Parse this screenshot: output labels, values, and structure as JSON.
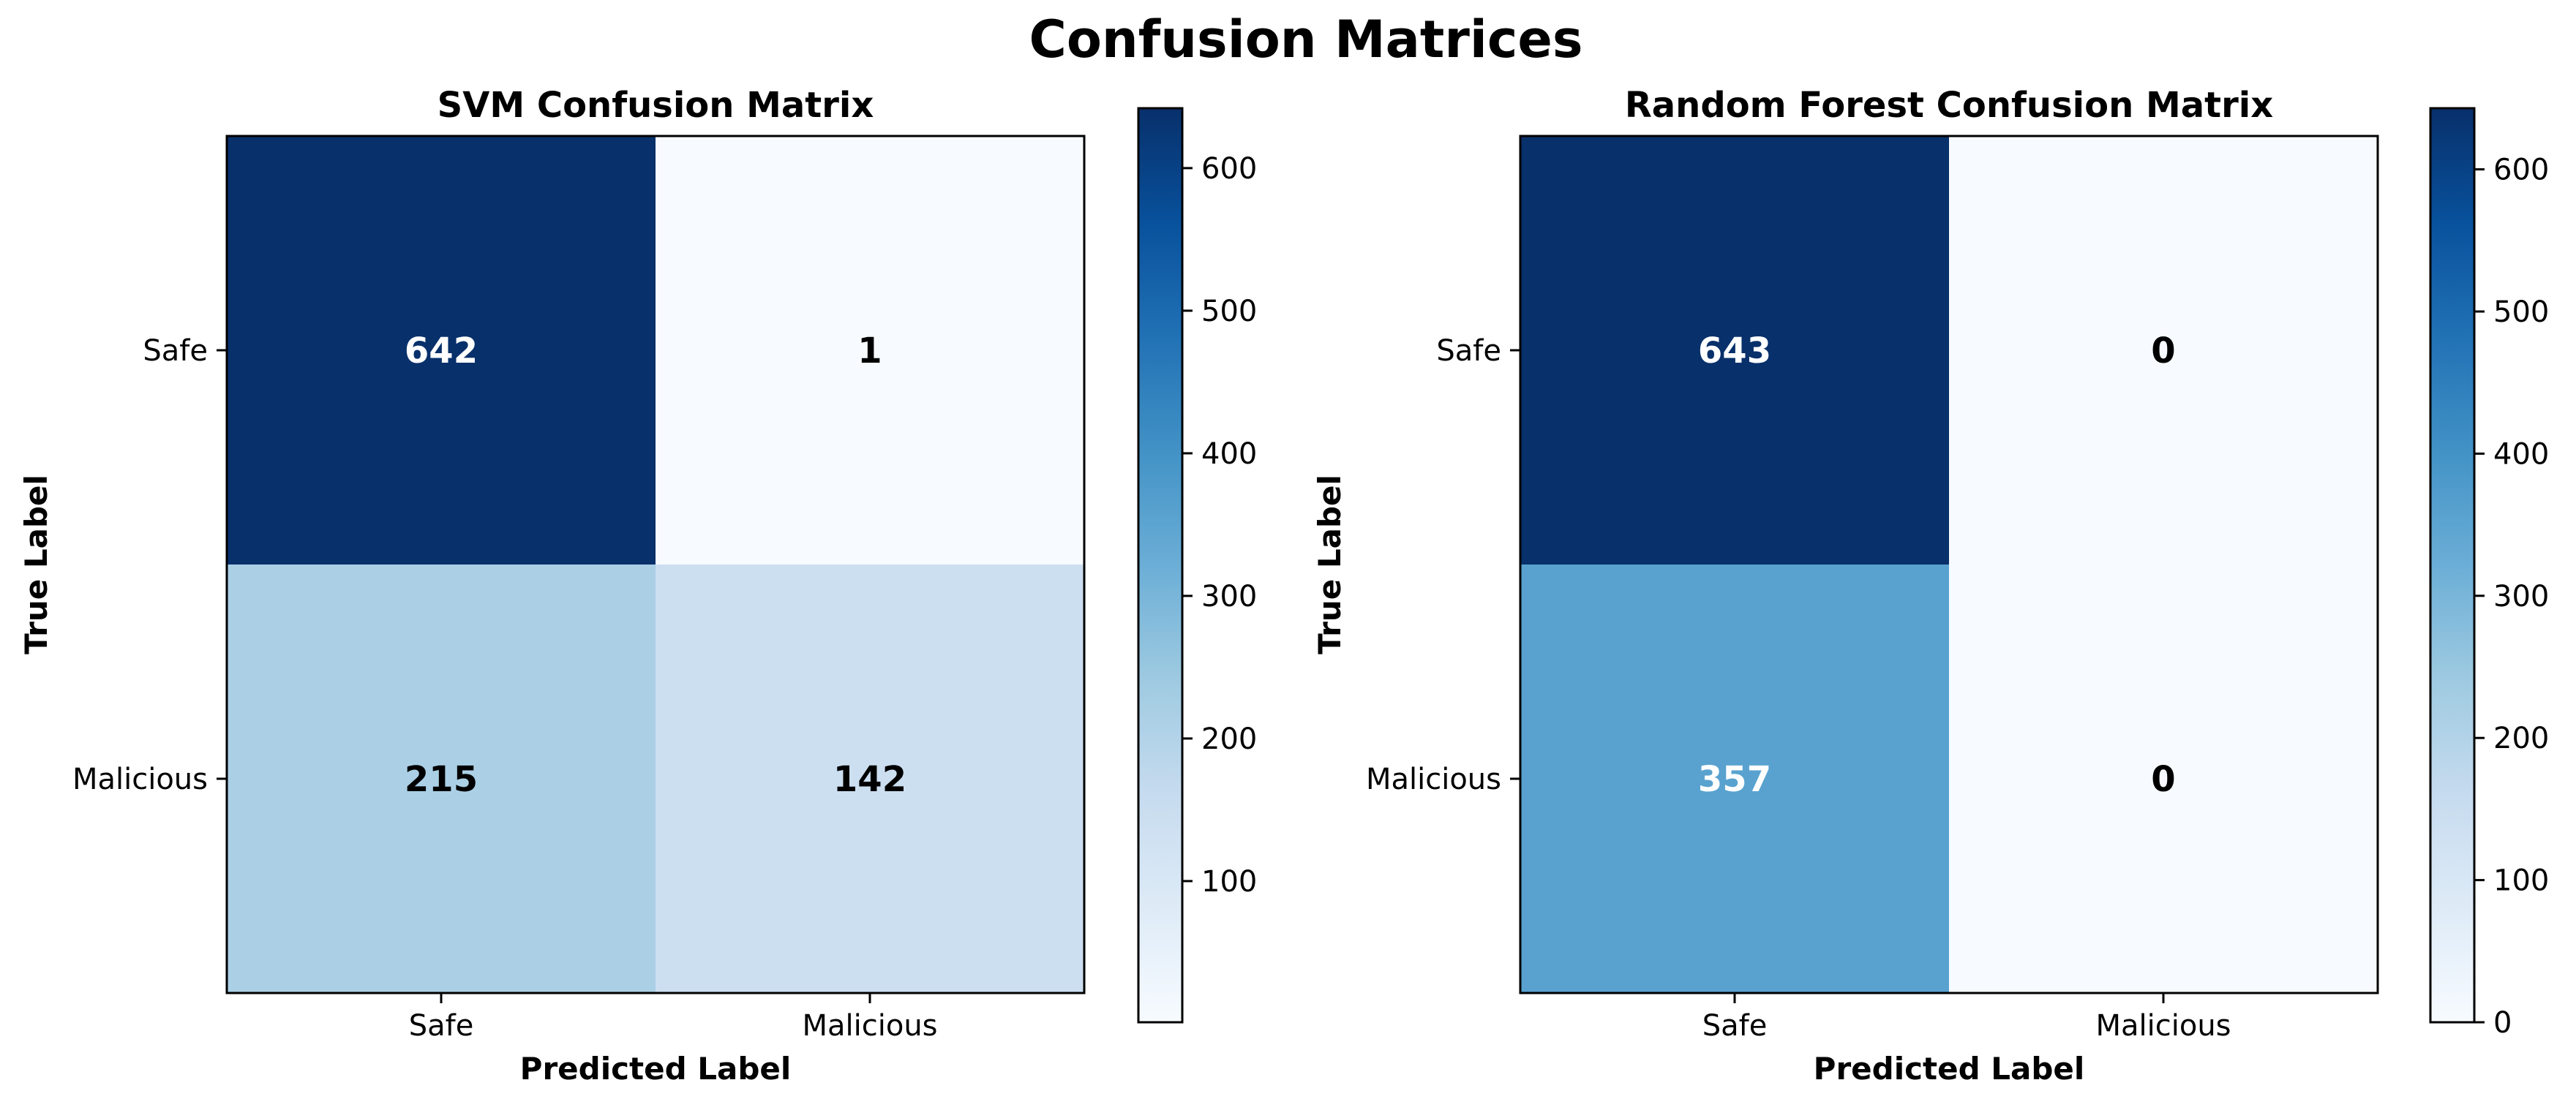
{
  "suptitle": "Confusion Matrices",
  "chart_data": [
    {
      "type": "heatmap",
      "title": "SVM Confusion Matrix",
      "xlabel": "Predicted Label",
      "ylabel": "True Label",
      "x_categories": [
        "Safe",
        "Malicious"
      ],
      "y_categories": [
        "Safe",
        "Malicious"
      ],
      "values": [
        [
          642,
          1
        ],
        [
          215,
          142
        ]
      ],
      "colormap": "Blues",
      "colorbar": {
        "min": 1,
        "max": 642,
        "ticks": [
          100,
          200,
          300,
          400,
          500,
          600
        ],
        "tick_labels": [
          "100",
          "200",
          "300",
          "400",
          "500",
          "600"
        ]
      }
    },
    {
      "type": "heatmap",
      "title": "Random Forest Confusion Matrix",
      "xlabel": "Predicted Label",
      "ylabel": "True Label",
      "x_categories": [
        "Safe",
        "Malicious"
      ],
      "y_categories": [
        "Safe",
        "Malicious"
      ],
      "values": [
        [
          643,
          0
        ],
        [
          357,
          0
        ]
      ],
      "colormap": "Blues",
      "colorbar": {
        "min": 0,
        "max": 643,
        "ticks": [
          0,
          100,
          200,
          300,
          400,
          500,
          600
        ],
        "tick_labels": [
          "0",
          "100",
          "200",
          "300",
          "400",
          "500",
          "600"
        ]
      }
    }
  ]
}
